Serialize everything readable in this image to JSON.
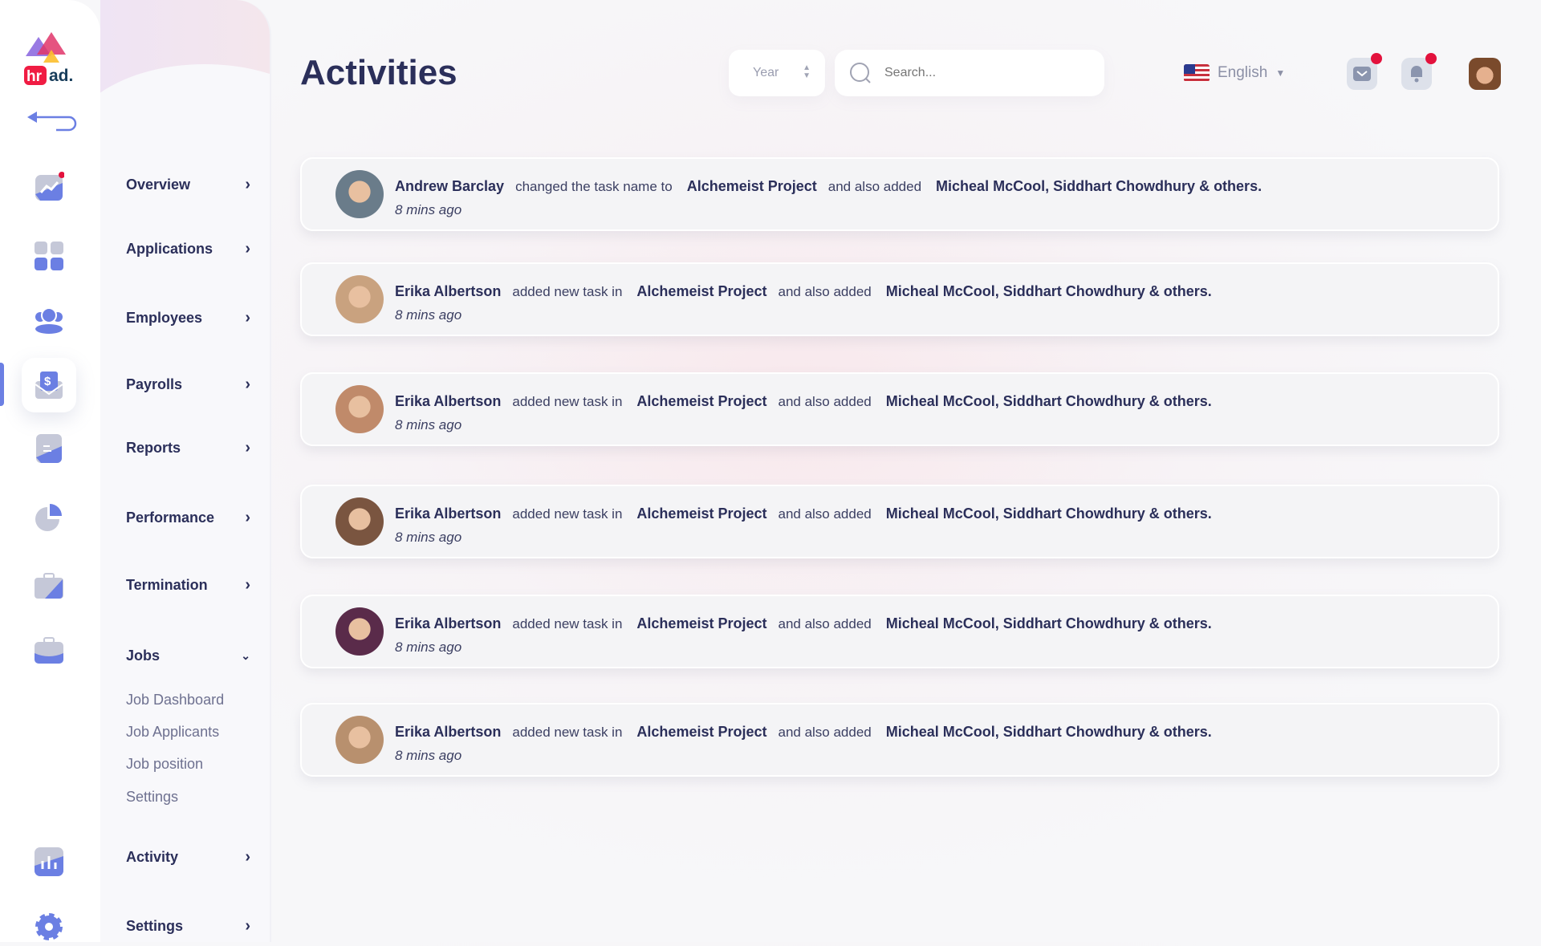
{
  "brand": {
    "logo_text": "hr ad."
  },
  "colors": {
    "accent": "#6b7fe3",
    "text": "#2b2f5a",
    "badge": "#e3123d"
  },
  "rail": {
    "icons": [
      "overview-chart-icon",
      "applications-grid-icon",
      "employees-group-icon",
      "payrolls-envelope-icon",
      "reports-document-icon",
      "performance-pie-icon",
      "termination-briefcase-icon",
      "jobs-briefcase-icon",
      "activity-bar-chart-icon",
      "settings-gear-icon"
    ],
    "active": "payrolls-envelope-icon"
  },
  "sidebar": {
    "items": [
      {
        "label": "Overview"
      },
      {
        "label": "Applications"
      },
      {
        "label": "Employees"
      },
      {
        "label": "Payrolls"
      },
      {
        "label": "Reports"
      },
      {
        "label": "Performance"
      },
      {
        "label": "Termination"
      },
      {
        "label": "Jobs",
        "expanded": true
      },
      {
        "label": "Activity"
      },
      {
        "label": "Settings"
      }
    ],
    "jobs_sub": [
      "Job Dashboard",
      "Job Applicants",
      "Job position",
      "Settings"
    ]
  },
  "header": {
    "title": "Activities",
    "period_select": "Year",
    "search_placeholder": "Search...",
    "language": "English"
  },
  "activities": [
    {
      "name": "Andrew Barclay",
      "action": "changed the task name to",
      "project": "Alchemeist Project",
      "connector": "and also added",
      "people": "Micheal McCool, Siddhart Chowdhury & others.",
      "time": "8 mins ago"
    },
    {
      "name": "Erika Albertson",
      "action": "added new task in",
      "project": "Alchemeist Project",
      "connector": "and also added",
      "people": "Micheal McCool, Siddhart Chowdhury & others.",
      "time": "8 mins ago"
    },
    {
      "name": "Erika Albertson",
      "action": "added new task in",
      "project": "Alchemeist Project",
      "connector": "and also added",
      "people": "Micheal McCool, Siddhart Chowdhury & others.",
      "time": "8 mins ago"
    },
    {
      "name": "Erika Albertson",
      "action": "added new task in",
      "project": "Alchemeist Project",
      "connector": "and also added",
      "people": "Micheal McCool, Siddhart Chowdhury & others.",
      "time": "8 mins ago"
    },
    {
      "name": "Erika Albertson",
      "action": "added new task in",
      "project": "Alchemeist Project",
      "connector": "and also added",
      "people": "Micheal McCool, Siddhart Chowdhury & others.",
      "time": "8 mins ago"
    },
    {
      "name": "Erika Albertson",
      "action": "added new task in",
      "project": "Alchemeist Project",
      "connector": "and also added",
      "people": "Micheal McCool, Siddhart Chowdhury & others.",
      "time": "8 mins ago"
    }
  ]
}
